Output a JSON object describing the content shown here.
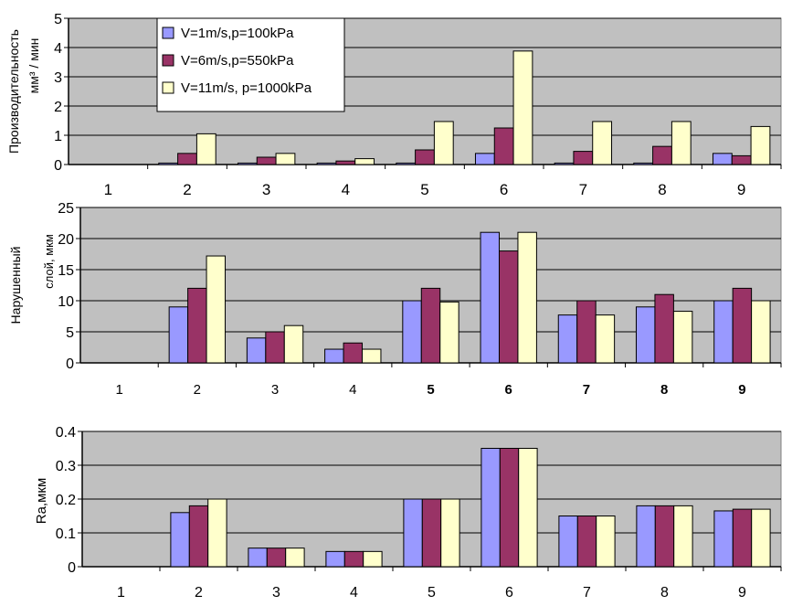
{
  "colors": {
    "series1": "#9999FF",
    "series2": "#993366",
    "series3": "#FFFFCC",
    "plot_bg": "#C0C0C0",
    "grid": "#000000"
  },
  "chart_data": [
    {
      "type": "bar",
      "ylabel": "Производительность",
      "ylabel2": "мм³ / мин",
      "yticks": [
        "0",
        "1",
        "2",
        "3",
        "4",
        "5"
      ],
      "ylim": [
        0,
        5
      ],
      "categories": [
        "1",
        "2",
        "3",
        "4",
        "5",
        "6",
        "7",
        "8",
        "9"
      ],
      "grid": true,
      "legend_position": "top-left",
      "series": [
        {
          "name": "V=1m/s,p=100kPa",
          "values": [
            0,
            0.05,
            0.05,
            0.05,
            0.05,
            0.38,
            0.05,
            0.05,
            0.38
          ]
        },
        {
          "name": "V=6m/s,p=550kPa",
          "values": [
            0,
            0.38,
            0.25,
            0.12,
            0.5,
            1.25,
            0.45,
            0.62,
            0.3
          ]
        },
        {
          "name": "V=11m/s, p=1000kPa",
          "values": [
            0,
            1.05,
            0.38,
            0.2,
            1.47,
            3.88,
            1.47,
            1.47,
            1.3
          ]
        }
      ]
    },
    {
      "type": "bar",
      "ylabel": "Нарушенный",
      "ylabel2": "слой, мкм",
      "yticks": [
        "0",
        "5",
        "10",
        "15",
        "20",
        "25"
      ],
      "ylim": [
        0,
        25
      ],
      "categories": [
        "1",
        "2",
        "3",
        "4",
        "5",
        "6",
        "7",
        "8",
        "9"
      ],
      "grid": true,
      "series": [
        {
          "values": [
            0,
            9,
            4,
            2.2,
            10,
            21,
            7.7,
            9,
            10
          ]
        },
        {
          "values": [
            0,
            12,
            5,
            3.2,
            12,
            18,
            10,
            11,
            12
          ]
        },
        {
          "values": [
            0,
            17.2,
            6,
            2.2,
            9.8,
            21,
            7.7,
            8.3,
            10
          ]
        }
      ]
    },
    {
      "type": "bar",
      "ylabel": "Ra,мкм",
      "yticks": [
        "0",
        "0.1",
        "0.2",
        "0.3",
        "0.4"
      ],
      "ylim": [
        0,
        0.4
      ],
      "categories": [
        "1",
        "2",
        "3",
        "4",
        "5",
        "6",
        "7",
        "8",
        "9"
      ],
      "grid": true,
      "series": [
        {
          "values": [
            0,
            0.16,
            0.055,
            0.045,
            0.2,
            0.35,
            0.15,
            0.18,
            0.165
          ]
        },
        {
          "values": [
            0,
            0.18,
            0.055,
            0.045,
            0.2,
            0.35,
            0.15,
            0.18,
            0.17
          ]
        },
        {
          "values": [
            0,
            0.2,
            0.055,
            0.045,
            0.2,
            0.35,
            0.15,
            0.18,
            0.17
          ]
        }
      ]
    }
  ]
}
